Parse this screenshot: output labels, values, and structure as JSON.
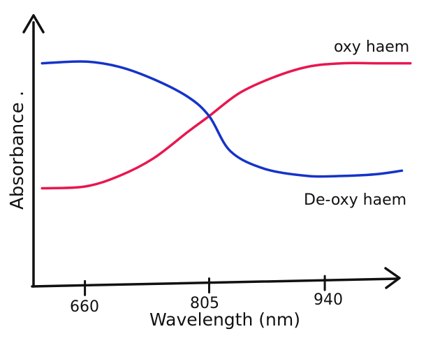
{
  "chart_data": {
    "type": "line",
    "title": "",
    "xlabel": "Wavelength (nm)",
    "ylabel": "Absorbance .",
    "x_ticks": [
      "660",
      "805",
      "940"
    ],
    "x_tick_values": [
      660,
      805,
      940
    ],
    "xlim": [
      600,
      1050
    ],
    "ylim": [
      0,
      1
    ],
    "grid": false,
    "legend": "inline labels at line ends",
    "series": [
      {
        "name": "oxy haem",
        "color": "#e8174f",
        "points": [
          [
            610,
            0.24
          ],
          [
            660,
            0.25
          ],
          [
            700,
            0.31
          ],
          [
            740,
            0.41
          ],
          [
            780,
            0.56
          ],
          [
            805,
            0.65
          ],
          [
            840,
            0.78
          ],
          [
            880,
            0.87
          ],
          [
            920,
            0.93
          ],
          [
            960,
            0.95
          ],
          [
            1000,
            0.95
          ],
          [
            1040,
            0.95
          ]
        ]
      },
      {
        "name": "De-oxy haem",
        "color": "#1533c9",
        "points": [
          [
            610,
            0.95
          ],
          [
            660,
            0.96
          ],
          [
            700,
            0.93
          ],
          [
            740,
            0.86
          ],
          [
            780,
            0.76
          ],
          [
            805,
            0.65
          ],
          [
            830,
            0.45
          ],
          [
            870,
            0.35
          ],
          [
            920,
            0.31
          ],
          [
            960,
            0.31
          ],
          [
            1000,
            0.32
          ],
          [
            1030,
            0.34
          ]
        ]
      }
    ]
  }
}
